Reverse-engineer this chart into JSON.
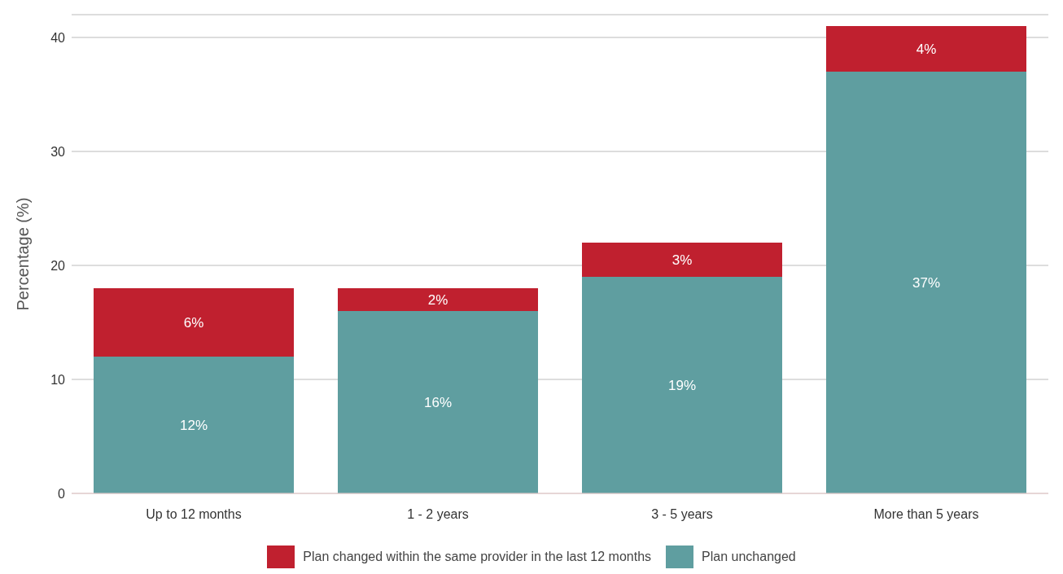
{
  "chart_data": {
    "type": "bar",
    "stacked": true,
    "ylabel": "Percentage (%)",
    "categories": [
      "Up to 12 months",
      "1 - 2 years",
      "3 - 5 years",
      "More than 5 years"
    ],
    "series": [
      {
        "name": "Plan unchanged",
        "color": "#5f9ea0",
        "values": [
          12,
          16,
          19,
          37
        ],
        "value_labels": [
          "12%",
          "16%",
          "19%",
          "37%"
        ]
      },
      {
        "name": "Plan changed within the same provider in the last 12 months",
        "color": "#c0202f",
        "values": [
          6,
          2,
          3,
          4
        ],
        "value_labels": [
          "6%",
          "2%",
          "3%",
          "4%"
        ]
      }
    ],
    "ylim": [
      0,
      42
    ],
    "yticks": [
      0,
      10,
      20,
      30,
      40
    ],
    "grid": "y",
    "legend": "bottom"
  }
}
